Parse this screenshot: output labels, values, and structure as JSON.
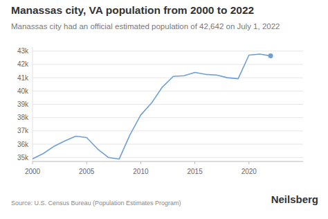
{
  "chart_data": {
    "type": "line",
    "title": "Manassas city, VA population from 2000 to 2022",
    "subtitle": "Manassas city had an official estimated population of 42,642 on July 1, 2022",
    "source": "Source: U.S. Census Bureau (Population Estimates Program)",
    "brand": "Neilsberg",
    "x": [
      2000,
      2001,
      2002,
      2003,
      2004,
      2005,
      2006,
      2007,
      2008,
      2009,
      2010,
      2011,
      2012,
      2013,
      2014,
      2015,
      2016,
      2017,
      2018,
      2019,
      2020,
      2021,
      2022
    ],
    "series": [
      {
        "name": "Manassas city",
        "color": "#6f9fd6",
        "marker": "last",
        "values": [
          34900,
          35300,
          35850,
          36250,
          36600,
          36500,
          35650,
          35000,
          34880,
          36700,
          38200,
          39100,
          40300,
          41100,
          41150,
          41400,
          41250,
          41200,
          41000,
          40920,
          42700,
          42780,
          42642
        ]
      }
    ],
    "xlim": [
      2000,
      2025
    ],
    "xticks": [
      2000,
      2005,
      2010,
      2015,
      2020
    ],
    "ylim": [
      34700,
      43300
    ],
    "yticks": [
      {
        "value": 35000,
        "label": "35k"
      },
      {
        "value": 36000,
        "label": "36k"
      },
      {
        "value": 37000,
        "label": "37k"
      },
      {
        "value": 38000,
        "label": "38k"
      },
      {
        "value": 39000,
        "label": "39k"
      },
      {
        "value": 40000,
        "label": "40k"
      },
      {
        "value": 41000,
        "label": "41k"
      },
      {
        "value": 42000,
        "label": "42k"
      },
      {
        "value": 43000,
        "label": "43k"
      }
    ],
    "grid": true
  }
}
